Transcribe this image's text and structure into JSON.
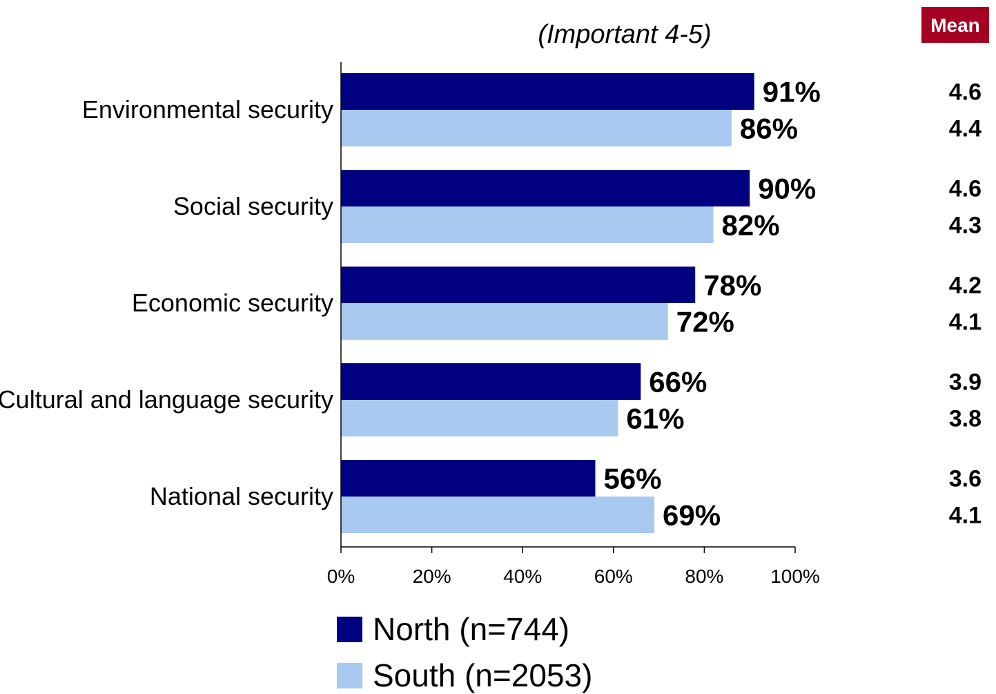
{
  "chart_data": {
    "type": "bar",
    "orientation": "horizontal",
    "subtitle": "(Important 4-5)",
    "categories": [
      "Environmental security",
      "Social security",
      "Economic security",
      "Cultural and language security",
      "National security"
    ],
    "series": [
      {
        "name": "North (n=744)",
        "color": "#000080",
        "values": [
          91,
          90,
          78,
          66,
          56
        ],
        "labels": [
          "91%",
          "90%",
          "78%",
          "66%",
          "56%"
        ],
        "means": [
          "4.6",
          "4.6",
          "4.2",
          "3.9",
          "3.6"
        ]
      },
      {
        "name": "South (n=2053)",
        "color": "#a8caf0",
        "values": [
          86,
          82,
          72,
          61,
          69
        ],
        "labels": [
          "86%",
          "82%",
          "72%",
          "61%",
          "69%"
        ],
        "means": [
          "4.4",
          "4.3",
          "4.1",
          "3.8",
          "4.1"
        ]
      }
    ],
    "xlim": [
      0,
      100
    ],
    "xticks": [
      "0%",
      "20%",
      "40%",
      "60%",
      "80%",
      "100%"
    ],
    "mean_header": "Mean",
    "mean_header_color": "#a50021",
    "grid": false,
    "legend_position": "bottom"
  }
}
